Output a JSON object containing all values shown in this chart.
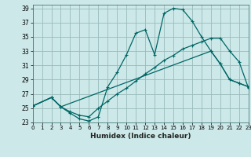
{
  "xlabel": "Humidex (Indice chaleur)",
  "bg_color": "#cce8e8",
  "grid_color": "#99bbbb",
  "line_color": "#006666",
  "xlim": [
    0,
    23
  ],
  "ylim": [
    23,
    39.5
  ],
  "xticks": [
    0,
    1,
    2,
    3,
    4,
    5,
    6,
    7,
    8,
    9,
    10,
    11,
    12,
    13,
    14,
    15,
    16,
    17,
    18,
    19,
    20,
    21,
    22,
    23
  ],
  "yticks": [
    23,
    25,
    27,
    29,
    31,
    33,
    35,
    37,
    39
  ],
  "curve1_x": [
    0,
    2,
    3,
    4,
    5,
    6,
    7,
    8,
    9,
    10,
    11,
    12,
    13,
    14,
    15,
    16,
    17,
    18,
    19,
    20,
    21,
    22,
    23
  ],
  "curve1_y": [
    25.3,
    26.5,
    25.2,
    24.3,
    23.5,
    23.2,
    23.8,
    28.0,
    30.0,
    32.5,
    35.5,
    36.0,
    32.5,
    38.3,
    39.0,
    38.8,
    37.2,
    35.0,
    33.0,
    31.2,
    29.0,
    28.5,
    28.0
  ],
  "curve2_x": [
    0,
    2,
    3,
    19,
    20,
    21,
    22,
    23
  ],
  "curve2_y": [
    25.3,
    26.5,
    25.2,
    33.0,
    31.2,
    29.0,
    28.5,
    28.0
  ],
  "curve3_x": [
    0,
    2,
    3,
    4,
    5,
    6,
    7,
    8,
    9,
    10,
    11,
    12,
    13,
    14,
    15,
    16,
    17,
    18,
    19,
    20,
    21,
    22,
    23
  ],
  "curve3_y": [
    25.3,
    26.5,
    25.2,
    24.5,
    24.0,
    23.8,
    25.0,
    26.0,
    27.0,
    27.8,
    28.8,
    29.8,
    30.7,
    31.7,
    32.4,
    33.3,
    33.8,
    34.3,
    34.8,
    34.8,
    33.0,
    31.5,
    27.8
  ]
}
